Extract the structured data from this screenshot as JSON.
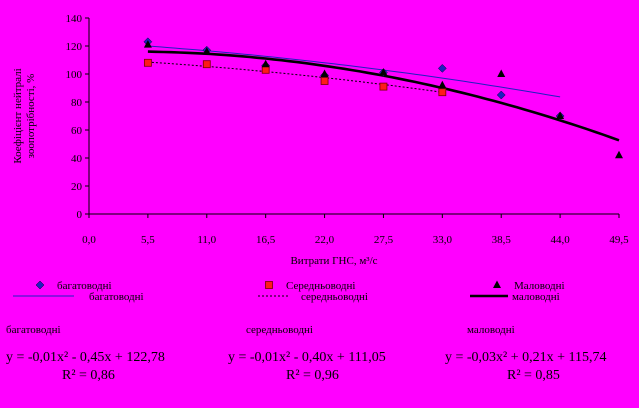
{
  "chart_data": {
    "type": "scatter",
    "xlabel": "Витрати ГНС, м³/с",
    "ylabel": [
      "Коефіцієнт нейтралі",
      "зоопотрібності, %"
    ],
    "xlim": [
      0,
      49.5
    ],
    "ylim": [
      0,
      140
    ],
    "x_ticks": [
      "0,0",
      "5,5",
      "11,0",
      "16,5",
      "22,0",
      "27,5",
      "33,0",
      "38,5",
      "44,0",
      "49,5"
    ],
    "y_ticks": [
      "0",
      "20",
      "40",
      "60",
      "80",
      "100",
      "120",
      "140"
    ],
    "grid": false,
    "legend_placement": "bottom",
    "series": [
      {
        "name": "багатоводні",
        "marker": "diamond",
        "color": "#1f1fbf",
        "points": [
          [
            5.5,
            123
          ],
          [
            11.0,
            117
          ],
          [
            16.5,
            106
          ],
          [
            22.0,
            99
          ],
          [
            27.5,
            101
          ],
          [
            33.0,
            104
          ],
          [
            38.5,
            85
          ],
          [
            44.0,
            70
          ]
        ]
      },
      {
        "name": "Середньоводні",
        "marker": "square",
        "color": "#ff1a1a",
        "points": [
          [
            5.5,
            108
          ],
          [
            11.0,
            107
          ],
          [
            16.5,
            103
          ],
          [
            22.0,
            95
          ],
          [
            27.5,
            91
          ],
          [
            33.0,
            87
          ]
        ]
      },
      {
        "name": "Маловодні",
        "marker": "triangle",
        "color": "#000000",
        "points": [
          [
            5.5,
            121
          ],
          [
            11.0,
            116
          ],
          [
            16.5,
            107
          ],
          [
            22.0,
            100
          ],
          [
            27.5,
            101
          ],
          [
            33.0,
            92
          ],
          [
            38.5,
            100
          ],
          [
            44.0,
            70
          ],
          [
            49.5,
            42
          ]
        ]
      }
    ],
    "trendlines": [
      {
        "name": "багатоводні",
        "style": "thin",
        "color": "#1f1fbf",
        "x_range": [
          5.5,
          44.0
        ],
        "a": -0.01,
        "b": -0.45,
        "c": 122.78
      },
      {
        "name": "середньоводні",
        "style": "dotted",
        "color": "#000000",
        "x_range": [
          5.5,
          33.0
        ],
        "a": -0.01,
        "b": -0.4,
        "c": 111.05
      },
      {
        "name": "маловодні",
        "style": "thick",
        "color": "#000000",
        "x_range": [
          5.5,
          49.5
        ],
        "a": -0.03,
        "b": 0.21,
        "c": 115.74
      }
    ],
    "equations": [
      {
        "head": "багатоводні",
        "formula": "y = -0,01x² - 0,45x + 122,78",
        "r2": "R² = 0,86"
      },
      {
        "head": "середньоводні",
        "formula": "y = -0,01x² - 0,40x + 111,05",
        "r2": "R² = 0,96"
      },
      {
        "head": "маловодні",
        "formula": "y = -0,03x² + 0,21x + 115,74",
        "r2": "R² = 0,85"
      }
    ]
  }
}
